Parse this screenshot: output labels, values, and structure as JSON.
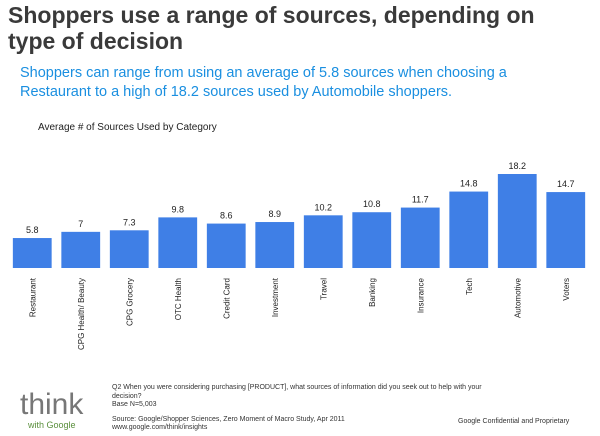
{
  "title": "Shoppers use a range of sources, depending on type of decision",
  "subtitle": "Shoppers can range from using an average of 5.8 sources when choosing a Restaurant to a high of 18.2 sources used by Automobile shoppers.",
  "chart_data": {
    "type": "bar",
    "title": "Average # of Sources Used by Category",
    "categories": [
      "Restaurant",
      "CPG Health/ Beauty",
      "CPG Grocery",
      "OTC Health",
      "Credit Card",
      "Investment",
      "Travel",
      "Banking",
      "Insurance",
      "Tech",
      "Automotive",
      "Voters"
    ],
    "values": [
      5.8,
      7,
      7.3,
      9.8,
      8.6,
      8.9,
      10.2,
      10.8,
      11.7,
      14.8,
      18.2,
      14.7
    ],
    "color": "#3f7fe6"
  },
  "footer": {
    "question": "Q2 When you were considering purchasing [PRODUCT], what sources of information did you seek out to help with your decision?",
    "base": "Base N=5,003",
    "source": "Source:  Google/Shopper Sciences, Zero Moment of Macro Study, Apr 2011",
    "url": "www.google.com/think/insights",
    "confidential": "Google Confidential and Proprietary"
  },
  "logo": {
    "think": "think",
    "with": "with Google"
  }
}
